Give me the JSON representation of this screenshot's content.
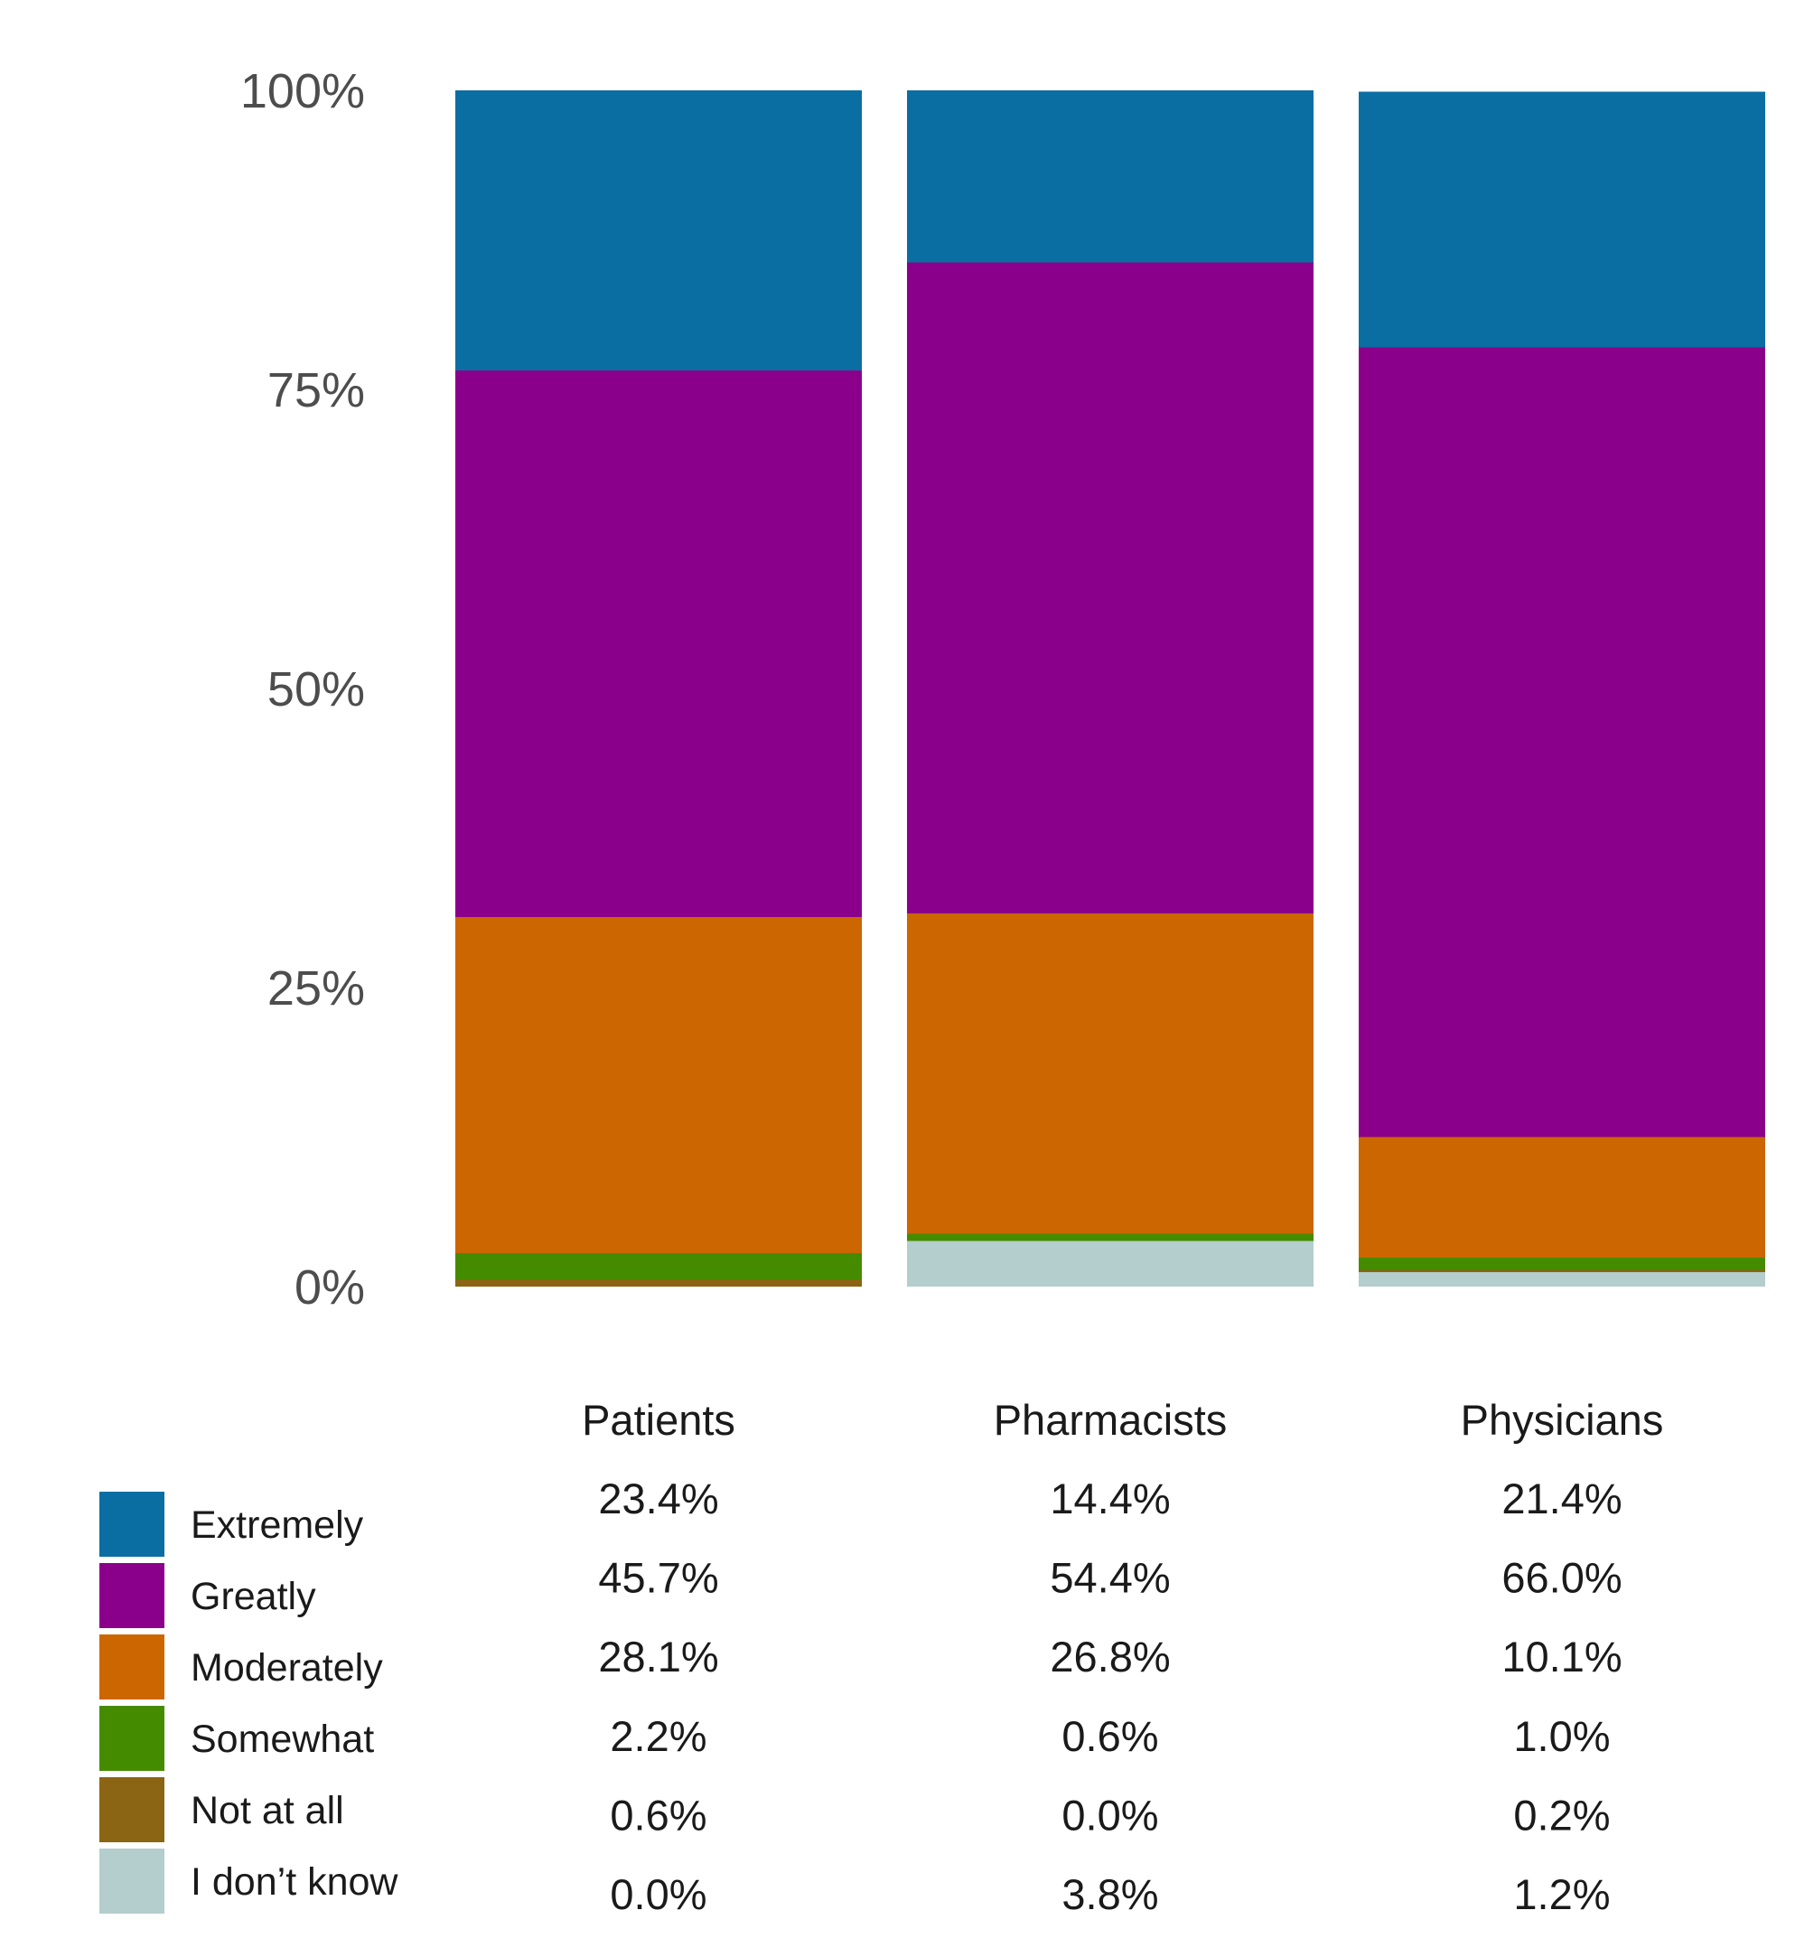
{
  "chart_data": {
    "type": "bar",
    "stacked": true,
    "normalized": true,
    "title": "",
    "xlabel": "",
    "ylabel": "",
    "ylim": [
      0,
      100
    ],
    "y_ticks": [
      "0%",
      "25%",
      "50%",
      "75%",
      "100%"
    ],
    "categories": [
      "Patients",
      "Pharmacists",
      "Physicians"
    ],
    "series": [
      {
        "name": "Extremely",
        "color": "#0b6ea2",
        "values": [
          23.4,
          14.4,
          21.4
        ],
        "labels": [
          "23.4%",
          "14.4%",
          "21.4%"
        ]
      },
      {
        "name": "Greatly",
        "color": "#8b008b",
        "values": [
          45.7,
          54.4,
          66.0
        ],
        "labels": [
          "45.7%",
          "54.4%",
          "66.0%"
        ]
      },
      {
        "name": "Moderately",
        "color": "#cc6600",
        "values": [
          28.1,
          26.8,
          10.1
        ],
        "labels": [
          "28.1%",
          "26.8%",
          "10.1%"
        ]
      },
      {
        "name": "Somewhat",
        "color": "#458b00",
        "values": [
          2.2,
          0.6,
          1.0
        ],
        "labels": [
          "2.2%",
          "0.6%",
          "1.0%"
        ]
      },
      {
        "name": "Not at all",
        "color": "#8b6513",
        "values": [
          0.6,
          0.0,
          0.2
        ],
        "labels": [
          "0.6%",
          "0.0%",
          "0.2%"
        ]
      },
      {
        "name": "I don’t know",
        "color": "#b4cdcd",
        "values": [
          0.0,
          3.8,
          1.2
        ],
        "labels": [
          "0.0%",
          "3.8%",
          "1.2%"
        ]
      }
    ],
    "legend_position": "bottom-left"
  }
}
